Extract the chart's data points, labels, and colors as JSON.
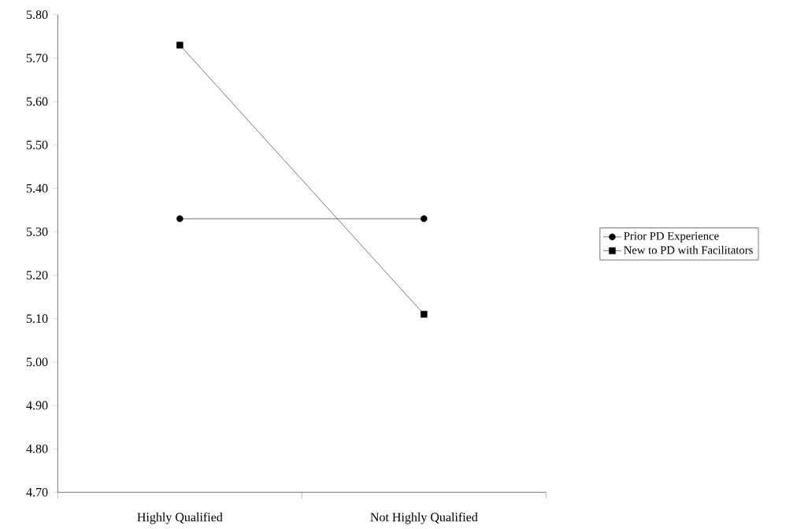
{
  "chart_data": {
    "type": "line",
    "categories": [
      "Highly Qualified",
      "Not Highly Qualified"
    ],
    "series": [
      {
        "name": "Prior PD Experience",
        "color": "#000000",
        "marker": "circle",
        "values": [
          5.33,
          5.33
        ]
      },
      {
        "name": "New to PD with Facilitators",
        "color": "#000000",
        "marker": "square",
        "values": [
          5.73,
          5.11
        ]
      }
    ],
    "ylim": [
      4.7,
      5.8
    ],
    "yticks": [
      {
        "value": 4.7,
        "label": "4.70"
      },
      {
        "value": 4.8,
        "label": "4.80"
      },
      {
        "value": 4.9,
        "label": "4.90"
      },
      {
        "value": 5.0,
        "label": "5.00"
      },
      {
        "value": 5.1,
        "label": "5.10"
      },
      {
        "value": 5.2,
        "label": "5.20"
      },
      {
        "value": 5.3,
        "label": "5.30"
      },
      {
        "value": 5.4,
        "label": "5.40"
      },
      {
        "value": 5.5,
        "label": "5.50"
      },
      {
        "value": 5.6,
        "label": "5.60"
      },
      {
        "value": 5.7,
        "label": "5.70"
      },
      {
        "value": 5.8,
        "label": "5.80"
      }
    ],
    "legend": "right",
    "grid": false
  }
}
